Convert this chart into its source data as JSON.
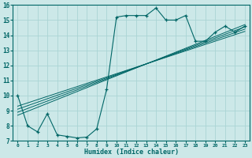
{
  "xlabel": "Humidex (Indice chaleur)",
  "bg_color": "#cce8e8",
  "grid_color": "#aad4d4",
  "line_color": "#006666",
  "xlim": [
    -0.5,
    23.5
  ],
  "ylim": [
    7,
    16
  ],
  "xticks": [
    0,
    1,
    2,
    3,
    4,
    5,
    6,
    7,
    8,
    9,
    10,
    11,
    12,
    13,
    14,
    15,
    16,
    17,
    18,
    19,
    20,
    21,
    22,
    23
  ],
  "yticks": [
    7,
    8,
    9,
    10,
    11,
    12,
    13,
    14,
    15,
    16
  ],
  "curve_x": [
    0,
    1,
    2,
    3,
    4,
    5,
    6,
    7,
    8,
    9,
    10,
    11,
    12,
    13,
    14,
    15,
    16,
    17,
    18,
    19,
    20,
    21,
    22,
    23
  ],
  "curve_y": [
    10.0,
    8.0,
    7.6,
    8.8,
    7.4,
    7.3,
    7.2,
    7.25,
    7.8,
    10.4,
    15.2,
    15.3,
    15.3,
    15.3,
    15.8,
    15.0,
    15.0,
    15.3,
    13.6,
    13.6,
    14.2,
    14.6,
    14.2,
    14.6
  ],
  "trend_lines": [
    {
      "x": [
        0,
        23
      ],
      "y": [
        8.7,
        14.7
      ]
    },
    {
      "x": [
        0,
        23
      ],
      "y": [
        8.9,
        14.55
      ]
    },
    {
      "x": [
        0,
        23
      ],
      "y": [
        9.1,
        14.4
      ]
    },
    {
      "x": [
        0,
        23
      ],
      "y": [
        9.3,
        14.25
      ]
    }
  ]
}
